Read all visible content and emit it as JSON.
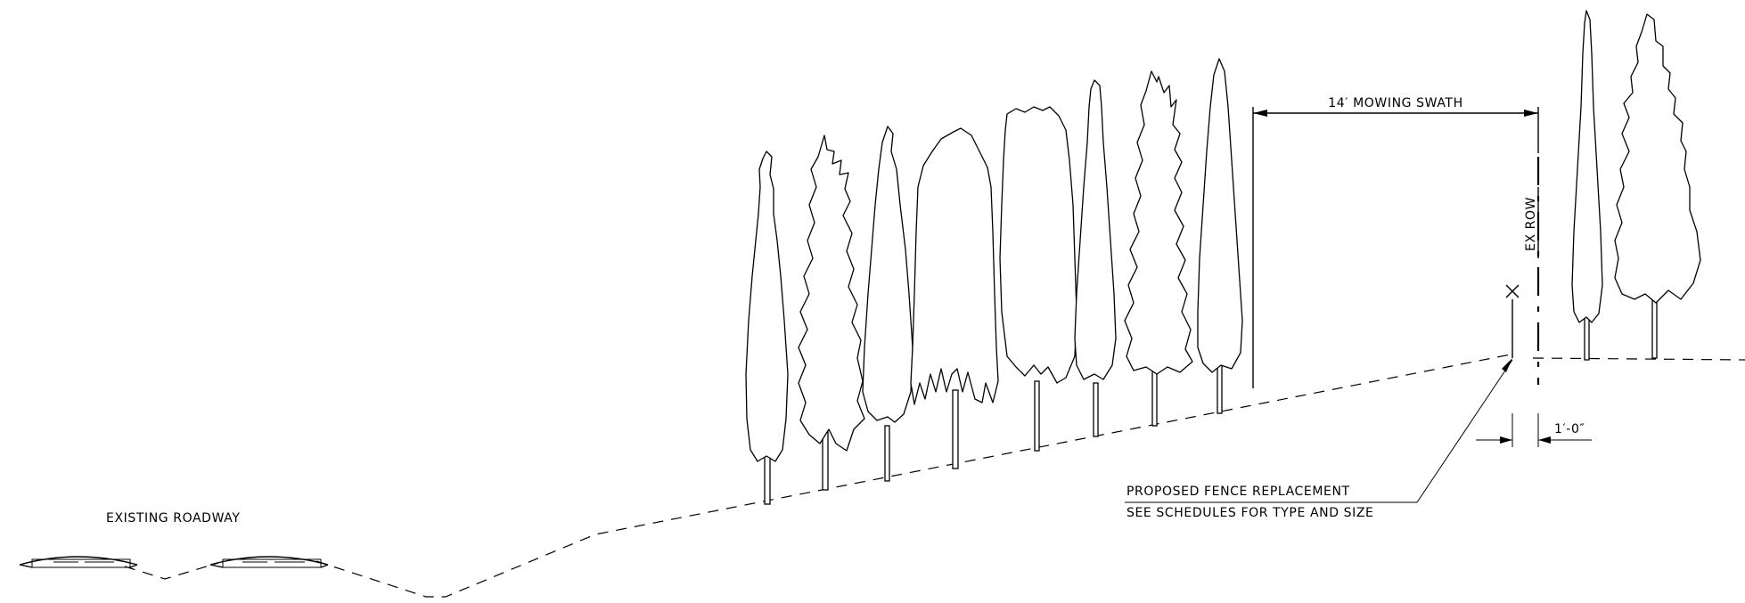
{
  "labels": {
    "existing_roadway": "EXISTING ROADWAY",
    "mowing_swath": "14′ MOWING SWATH",
    "ex_row": "EX ROW",
    "fence_line1": "PROPOSED FENCE REPLACEMENT",
    "fence_line2": "SEE SCHEDULES FOR TYPE AND SIZE",
    "offset_dim": "1′-0″"
  },
  "colors": {
    "ink": "#000000",
    "paper": "#ffffff"
  }
}
